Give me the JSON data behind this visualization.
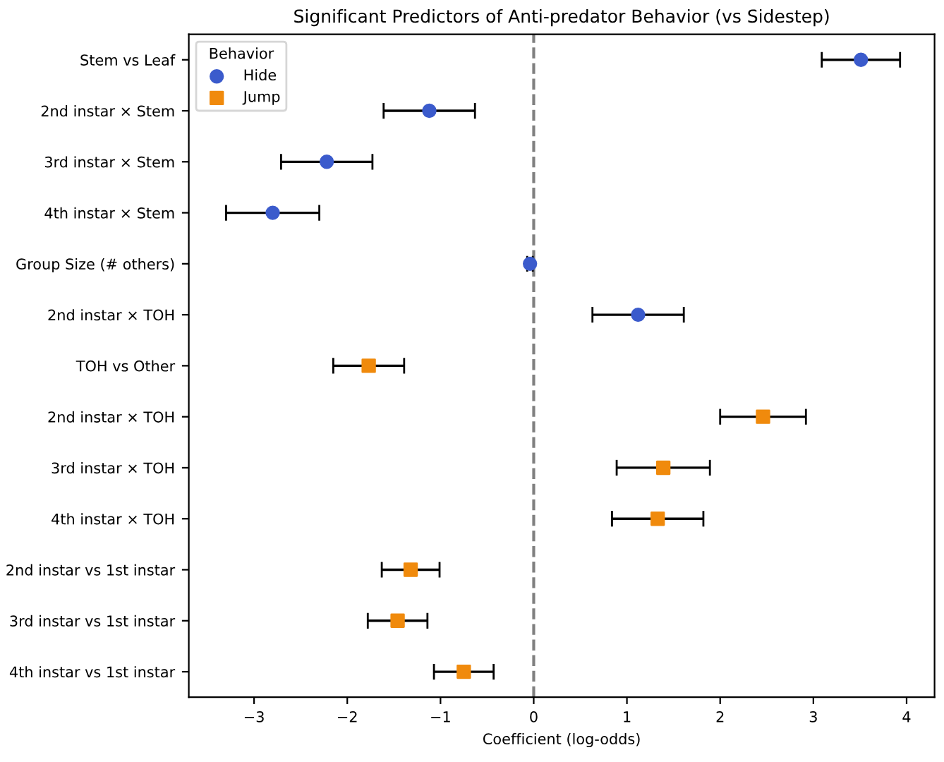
{
  "chart_data": {
    "type": "scatter",
    "orientation": "horizontal",
    "title": "Significant Predictors of Anti-predator Behavior (vs Sidestep)",
    "xlabel": "Coefficient (log-odds)",
    "legend_title": "Behavior",
    "legend": "top left",
    "grid": false,
    "categories": [
      "Stem vs Leaf",
      "2nd instar × Stem",
      "3rd instar × Stem",
      "4th instar × Stem",
      "Group Size (# others)",
      "2nd instar × TOH",
      "TOH vs Other",
      "2nd instar × TOH",
      "3rd instar × TOH",
      "4th instar × TOH",
      "2nd instar vs 1st instar",
      "3rd instar vs 1st instar",
      "4th instar vs 1st instar"
    ],
    "series": [
      {
        "name": "Hide",
        "color": "#3b5bcc",
        "marker": "circle",
        "values": [
          3.51,
          -1.12,
          -2.22,
          -2.8,
          -0.04,
          1.12,
          null,
          null,
          null,
          null,
          null,
          null,
          null
        ],
        "errors": [
          0.42,
          0.49,
          0.49,
          0.5,
          0.03,
          0.49,
          null,
          null,
          null,
          null,
          null,
          null,
          null
        ]
      },
      {
        "name": "Jump",
        "color": "#f08a0c",
        "marker": "square",
        "values": [
          null,
          null,
          null,
          null,
          null,
          null,
          -1.77,
          2.46,
          1.39,
          1.33,
          -1.32,
          -1.46,
          -0.75
        ],
        "errors": [
          null,
          null,
          null,
          null,
          null,
          null,
          0.38,
          0.46,
          0.5,
          0.49,
          0.31,
          0.32,
          0.32
        ]
      }
    ],
    "xlim": [
      -3.7,
      4.3
    ],
    "xticks": [
      {
        "value": -3,
        "label": "−3"
      },
      {
        "value": -2,
        "label": "−2"
      },
      {
        "value": -1,
        "label": "−1"
      },
      0,
      1,
      2,
      3,
      4
    ],
    "ref_lines": [
      {
        "axis": "x",
        "value": 0,
        "color": "#808080",
        "line_style": "dashed"
      }
    ]
  }
}
